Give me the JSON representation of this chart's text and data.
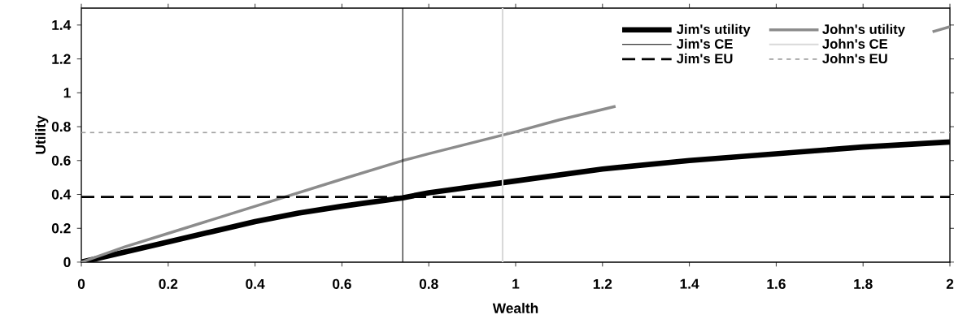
{
  "chart_data": {
    "type": "line",
    "xlabel": "Wealth",
    "ylabel": "Utility",
    "xlim": [
      0,
      2
    ],
    "ylim": [
      0,
      1.5
    ],
    "xticks": [
      0,
      0.2,
      0.4,
      0.6,
      0.8,
      1,
      1.2,
      1.4,
      1.6,
      1.8,
      2
    ],
    "yticks": [
      0,
      0.2,
      0.4,
      0.6,
      0.8,
      1,
      1.2,
      1.4
    ],
    "legend": "top right",
    "marker": "none",
    "series": [
      {
        "name": "Jim's utility",
        "color": "#000000",
        "line_style": "solid",
        "x": [
          0,
          0.1,
          0.2,
          0.3,
          0.4,
          0.5,
          0.6,
          0.74,
          0.8,
          1,
          1.2,
          1.4,
          1.6,
          1.8,
          2
        ],
        "values": [
          0,
          0.06,
          0.12,
          0.18,
          0.24,
          0.29,
          0.33,
          0.38,
          0.41,
          0.48,
          0.55,
          0.6,
          0.64,
          0.68,
          0.71
        ]
      },
      {
        "name": "John's utility",
        "color": "#8c8c8c",
        "line_style": "solid",
        "x": [
          0,
          0.1,
          0.2,
          0.4,
          0.6,
          0.74,
          0.8,
          1,
          1.1,
          1.23,
          1.5,
          1.96,
          2
        ],
        "values": [
          0,
          0.09,
          0.17,
          0.33,
          0.49,
          0.6,
          0.64,
          0.77,
          0.84,
          0.92,
          null,
          1.36,
          1.39
        ]
      },
      {
        "name": "Jim's CE",
        "color": "#000000",
        "line_style": "solid",
        "x": [
          0.74,
          0.74
        ],
        "values": [
          0,
          1.5
        ]
      },
      {
        "name": "John's CE",
        "color": "#d9d9d9",
        "line_style": "solid",
        "x": [
          0.97,
          0.97
        ],
        "values": [
          0,
          1.5
        ]
      },
      {
        "name": "Jim's EU",
        "color": "#000000",
        "line_style": "dashed",
        "x": [
          0,
          2
        ],
        "values": [
          0.385,
          0.385
        ]
      },
      {
        "name": "John's EU",
        "color": "#a0a0a0",
        "line_style": "dotted",
        "x": [
          0,
          2
        ],
        "values": [
          0.765,
          0.765
        ]
      }
    ]
  }
}
